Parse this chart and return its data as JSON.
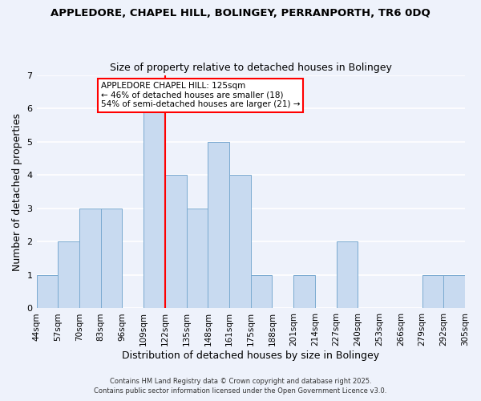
{
  "title": "APPLEDORE, CHAPEL HILL, BOLINGEY, PERRANPORTH, TR6 0DQ",
  "subtitle": "Size of property relative to detached houses in Bolingey",
  "xlabel": "Distribution of detached houses by size in Bolingey",
  "ylabel": "Number of detached properties",
  "bar_color": "#c8daf0",
  "bar_edge_color": "#7aaad0",
  "background_color": "#eef2fb",
  "grid_color": "#ffffff",
  "bin_labels": [
    "44sqm",
    "57sqm",
    "70sqm",
    "83sqm",
    "96sqm",
    "109sqm",
    "122sqm",
    "135sqm",
    "148sqm",
    "161sqm",
    "175sqm",
    "188sqm",
    "201sqm",
    "214sqm",
    "227sqm",
    "240sqm",
    "253sqm",
    "266sqm",
    "279sqm",
    "292sqm",
    "305sqm"
  ],
  "counts": [
    1,
    2,
    3,
    3,
    0,
    6,
    4,
    3,
    5,
    4,
    1,
    0,
    1,
    0,
    2,
    0,
    0,
    0,
    1,
    1
  ],
  "ylim": [
    0,
    7
  ],
  "yticks": [
    0,
    1,
    2,
    3,
    4,
    5,
    6,
    7
  ],
  "red_line_index": 6,
  "annotation_line1": "APPLEDORE CHAPEL HILL: 125sqm",
  "annotation_line2": "← 46% of detached houses are smaller (18)",
  "annotation_line3": "54% of semi-detached houses are larger (21) →",
  "footer1": "Contains HM Land Registry data © Crown copyright and database right 2025.",
  "footer2": "Contains public sector information licensed under the Open Government Licence v3.0."
}
